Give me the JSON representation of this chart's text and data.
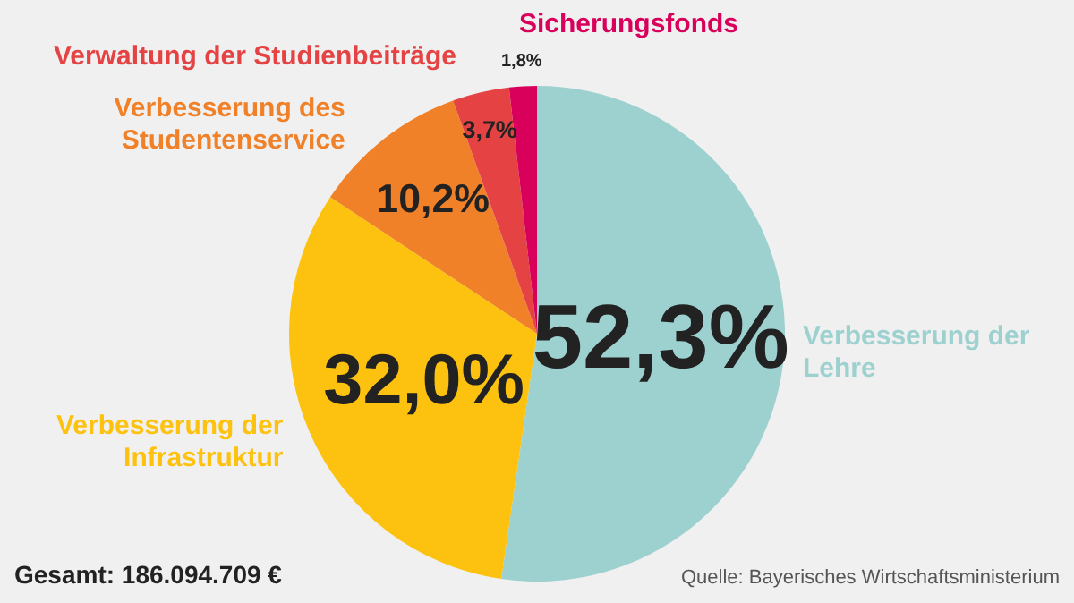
{
  "chart_data": {
    "type": "pie",
    "categories": [
      "Verbesserung der Lehre",
      "Verbesserung der Infrastruktur",
      "Verbesserung des Studentenservice",
      "Verwaltung der Studienbeiträge",
      "Sicherungsfonds"
    ],
    "values": [
      52.3,
      32.0,
      10.2,
      3.7,
      1.8
    ],
    "colors": [
      "#9dd1d0",
      "#fdc20f",
      "#f08128",
      "#e54343",
      "#d8005a"
    ],
    "value_labels": [
      "52,3%",
      "32,0%",
      "10,2%",
      "3,7%",
      "1,8%"
    ],
    "legend": false,
    "annotations": [
      "Gesamt: 186.094.709 €",
      "Quelle: Bayerisches Wirtschaftsministerium"
    ]
  }
}
